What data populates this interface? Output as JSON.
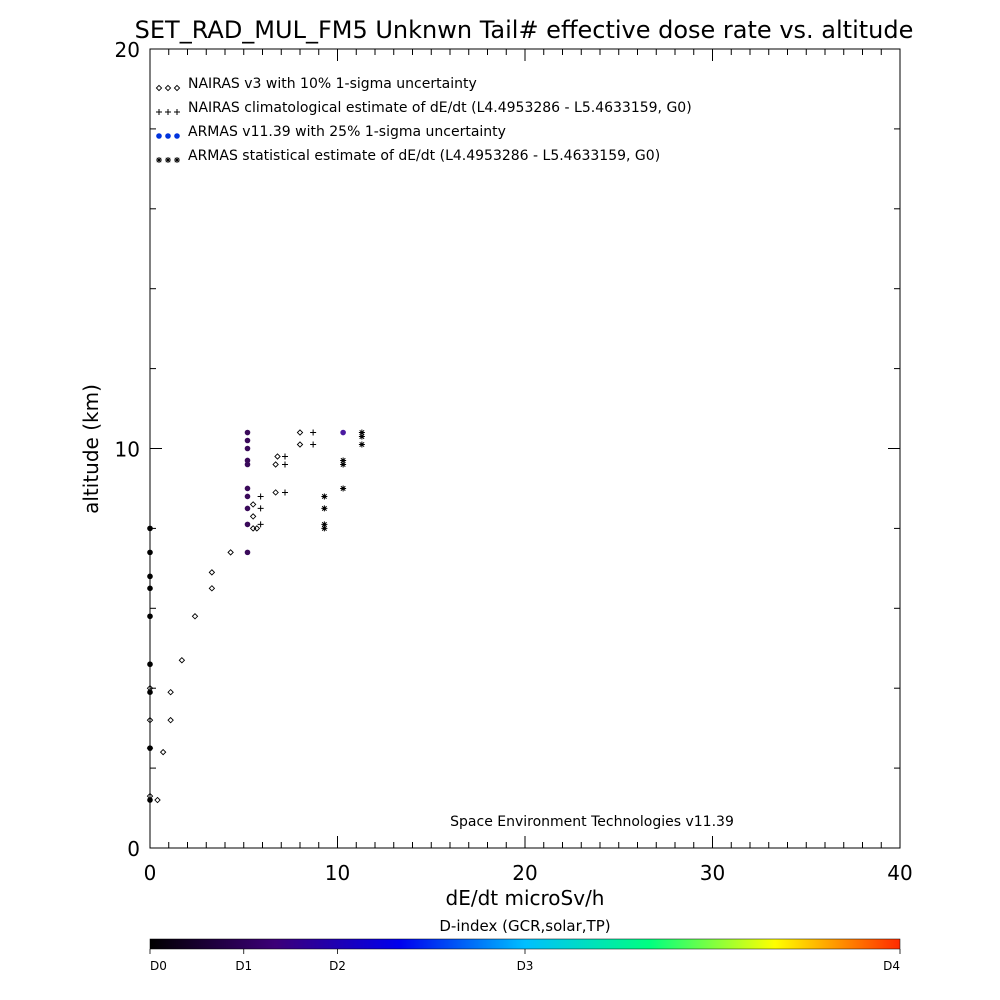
{
  "chart_data": {
    "type": "scatter",
    "title": "SET_RAD_MUL_FM5 Unknwn Tail#  effective dose rate vs. altitude",
    "xlabel": "dE/dt microSv/h",
    "ylabel": "altitude (km)",
    "xlim": [
      0,
      40
    ],
    "ylim": [
      0,
      20
    ],
    "x_ticks": [
      0,
      10,
      20,
      30,
      40
    ],
    "y_ticks": [
      0,
      10,
      20
    ],
    "grid": false,
    "legend_placement": "top-left",
    "annotation": "Space Environment Technologies v11.39",
    "series": [
      {
        "name": "NAIRAS v3 with 10% 1-sigma uncertainty",
        "marker": "diamond",
        "color": "#000000",
        "points": [
          [
            0.4,
            1.2
          ],
          [
            0.0,
            1.3
          ],
          [
            0.7,
            2.4
          ],
          [
            0.0,
            2.5
          ],
          [
            1.1,
            3.2
          ],
          [
            0.0,
            3.2
          ],
          [
            1.1,
            3.9
          ],
          [
            0.0,
            4.0
          ],
          [
            1.7,
            4.7
          ],
          [
            2.4,
            5.8
          ],
          [
            3.3,
            6.5
          ],
          [
            3.3,
            6.9
          ],
          [
            4.3,
            7.4
          ],
          [
            5.5,
            8.0
          ],
          [
            5.7,
            8.0
          ],
          [
            5.5,
            8.3
          ],
          [
            5.5,
            8.6
          ],
          [
            6.7,
            8.9
          ],
          [
            6.7,
            9.6
          ],
          [
            6.8,
            9.8
          ],
          [
            8.0,
            10.1
          ],
          [
            8.0,
            10.4
          ]
        ]
      },
      {
        "name": "NAIRAS climatological estimate of dE/dt (L4.4953286 - L5.4633159, G0)",
        "marker": "plus",
        "color": "#000000",
        "points": [
          [
            5.9,
            8.1
          ],
          [
            5.9,
            8.5
          ],
          [
            5.9,
            8.8
          ],
          [
            7.2,
            8.9
          ],
          [
            7.2,
            9.6
          ],
          [
            7.2,
            9.8
          ],
          [
            8.7,
            10.1
          ],
          [
            8.7,
            10.4
          ]
        ]
      },
      {
        "name": "ARMAS v11.39 with 25% 1-sigma uncertainty",
        "marker": "dot",
        "color": "#0033dd",
        "points": [
          [
            0.0,
            1.2
          ],
          [
            0.0,
            2.5
          ],
          [
            0.0,
            3.9
          ],
          [
            0.0,
            4.6
          ],
          [
            0.0,
            5.8
          ],
          [
            0.0,
            6.5
          ],
          [
            0.0,
            6.8
          ],
          [
            0.0,
            7.4
          ],
          [
            0.0,
            8.0
          ],
          [
            5.2,
            7.4
          ],
          [
            5.2,
            8.1
          ],
          [
            5.2,
            8.5
          ],
          [
            5.2,
            8.8
          ],
          [
            5.2,
            9.0
          ],
          [
            5.2,
            9.6
          ],
          [
            5.2,
            9.7
          ],
          [
            5.2,
            10.0
          ],
          [
            5.2,
            10.2
          ],
          [
            5.2,
            10.4
          ],
          [
            10.3,
            10.4
          ]
        ]
      },
      {
        "name": "ARMAS statistical estimate of dE/dt (L4.4953286 - L5.4633159, G0)",
        "marker": "asterisk",
        "color": "#000000",
        "points": [
          [
            9.3,
            8.0
          ],
          [
            9.3,
            8.1
          ],
          [
            9.3,
            8.5
          ],
          [
            9.3,
            8.8
          ],
          [
            10.3,
            9.0
          ],
          [
            10.3,
            9.6
          ],
          [
            10.3,
            9.7
          ],
          [
            11.3,
            10.1
          ],
          [
            11.3,
            10.3
          ],
          [
            11.3,
            10.4
          ]
        ]
      }
    ],
    "colorbar": {
      "title": "D-index (GCR,solar,TP)",
      "labels": [
        {
          "text": "D0",
          "pos": 0.0
        },
        {
          "text": "D1",
          "pos": 0.125
        },
        {
          "text": "D2",
          "pos": 0.25
        },
        {
          "text": "D3",
          "pos": 0.5
        },
        {
          "text": "D4",
          "pos": 1.0
        }
      ],
      "colors": [
        "#000000",
        "#3c0078",
        "#0000ee",
        "#00bfff",
        "#00ff80",
        "#ffff00",
        "#ff2a00"
      ]
    }
  }
}
